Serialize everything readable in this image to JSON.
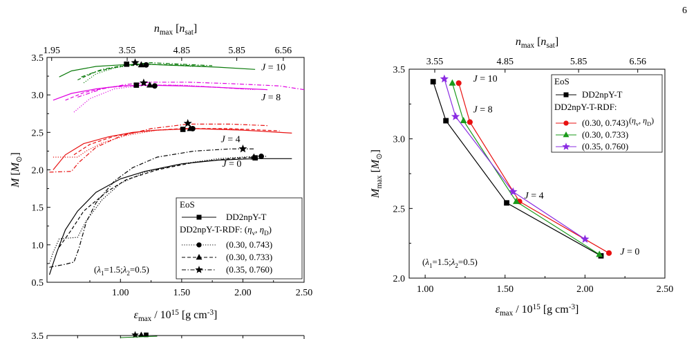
{
  "page": {
    "number": "6"
  },
  "chart_data": [
    {
      "type": "line",
      "xlabel": "ε_max / 10^15 [g cm^-3]",
      "ylabel": "M [M_⊙]",
      "top_xlabel": "n_max [n_sat]",
      "xlim": [
        0.4,
        2.5
      ],
      "ylim": [
        0.5,
        3.5
      ],
      "x_ticks": [
        "1.00",
        "1.50",
        "2.00",
        "2.50"
      ],
      "y_ticks": [
        "0.5",
        "1.0",
        "1.5",
        "2.0",
        "2.5",
        "3.0",
        "3.5"
      ],
      "top_ticks": [
        "1.95",
        "3.55",
        "4.85",
        "5.85",
        "6.56"
      ],
      "top_tick_pos": [
        0.438,
        1.055,
        1.5,
        1.95,
        2.33
      ],
      "annotation": "(λ1=1.5;λ2=0.5)",
      "legend": {
        "title": "EoS",
        "entries": [
          "DD2npY-T",
          "DD2npY-T-RDF: (η_v, η_D)",
          "(0.30, 0.743)",
          "(0.30, 0.733)",
          "(0.35, 0.760)"
        ],
        "position": "lower-right"
      },
      "groups": [
        {
          "label": "J = 10",
          "color": "#0a7a0a",
          "label_at": [
            2.15,
            3.33
          ]
        },
        {
          "label": "J = 8",
          "color": "#e000e0",
          "label_at": [
            2.15,
            2.93
          ]
        },
        {
          "label": "J = 4",
          "color": "#e81010",
          "label_at": [
            1.82,
            2.37
          ]
        },
        {
          "label": "J = 0",
          "color": "#000000",
          "label_at": [
            1.83,
            2.04
          ]
        }
      ],
      "series": [
        {
          "group": 0,
          "eos": "DD2npY-T",
          "style": "solid",
          "points": [
            [
              0.5,
              3.24
            ],
            [
              0.6,
              3.32
            ],
            [
              0.8,
              3.38
            ],
            [
              1.0,
              3.4
            ],
            [
              1.2,
              3.41
            ],
            [
              1.5,
              3.39
            ],
            [
              1.8,
              3.37
            ],
            [
              2.1,
              3.34
            ]
          ]
        },
        {
          "group": 0,
          "eos": "(0.30, 0.743)",
          "style": "dotted",
          "points": [
            [
              0.7,
              3.16
            ],
            [
              0.8,
              3.28
            ],
            [
              0.95,
              3.36
            ],
            [
              1.15,
              3.41
            ],
            [
              1.4,
              3.4
            ],
            [
              1.6,
              3.38
            ]
          ]
        },
        {
          "group": 0,
          "eos": "(0.30, 0.733)",
          "style": "dashed",
          "points": [
            [
              0.65,
              3.2
            ],
            [
              0.8,
              3.31
            ],
            [
              1.0,
              3.38
            ],
            [
              1.2,
              3.41
            ],
            [
              1.45,
              3.4
            ],
            [
              1.7,
              3.38
            ]
          ]
        },
        {
          "group": 0,
          "eos": "(0.35, 0.760)",
          "style": "dashdot",
          "points": [
            [
              0.68,
              3.24
            ],
            [
              0.85,
              3.34
            ],
            [
              1.05,
              3.4
            ],
            [
              1.25,
              3.43
            ],
            [
              1.5,
              3.41
            ],
            [
              1.75,
              3.39
            ]
          ]
        },
        {
          "group": 1,
          "eos": "DD2npY-T",
          "style": "solid",
          "points": [
            [
              0.45,
              2.93
            ],
            [
              0.6,
              3.02
            ],
            [
              0.8,
              3.08
            ],
            [
              1.0,
              3.12
            ],
            [
              1.2,
              3.13
            ],
            [
              1.5,
              3.12
            ],
            [
              1.8,
              3.1
            ],
            [
              2.2,
              3.07
            ]
          ]
        },
        {
          "group": 1,
          "eos": "(0.30, 0.743)",
          "style": "dotted",
          "points": [
            [
              0.62,
              2.77
            ],
            [
              0.75,
              2.95
            ],
            [
              0.95,
              3.08
            ],
            [
              1.2,
              3.13
            ],
            [
              1.5,
              3.13
            ],
            [
              1.8,
              3.1
            ],
            [
              2.1,
              3.07
            ]
          ]
        },
        {
          "group": 1,
          "eos": "(0.30, 0.733)",
          "style": "dashed",
          "points": [
            [
              0.55,
              2.93
            ],
            [
              0.7,
              3.03
            ],
            [
              0.9,
              3.1
            ],
            [
              1.15,
              3.13
            ],
            [
              1.4,
              3.13
            ],
            [
              1.7,
              3.11
            ],
            [
              2.0,
              3.08
            ]
          ]
        },
        {
          "group": 1,
          "eos": "(0.35, 0.760)",
          "style": "dashdot",
          "points": [
            [
              0.65,
              2.97
            ],
            [
              0.85,
              3.08
            ],
            [
              1.05,
              3.14
            ],
            [
              1.25,
              3.17
            ],
            [
              1.55,
              3.17
            ],
            [
              1.9,
              3.15
            ],
            [
              2.3,
              3.12
            ],
            [
              2.5,
              3.07
            ]
          ]
        },
        {
          "group": 2,
          "eos": "DD2npY-T",
          "style": "solid",
          "points": [
            [
              0.45,
              2.0
            ],
            [
              0.55,
              2.2
            ],
            [
              0.7,
              2.35
            ],
            [
              0.9,
              2.44
            ],
            [
              1.1,
              2.5
            ],
            [
              1.3,
              2.53
            ],
            [
              1.6,
              2.55
            ],
            [
              2.0,
              2.53
            ],
            [
              2.4,
              2.49
            ]
          ]
        },
        {
          "group": 2,
          "eos": "(0.30, 0.743)",
          "style": "dotted",
          "points": [
            [
              0.45,
              2.17
            ],
            [
              0.65,
              2.17
            ],
            [
              0.72,
              2.25
            ],
            [
              0.85,
              2.36
            ],
            [
              1.05,
              2.46
            ],
            [
              1.3,
              2.53
            ],
            [
              1.6,
              2.55
            ],
            [
              2.0,
              2.54
            ]
          ]
        },
        {
          "group": 2,
          "eos": "(0.30, 0.733)",
          "style": "dashed",
          "points": [
            [
              0.62,
              2.2
            ],
            [
              0.75,
              2.34
            ],
            [
              0.95,
              2.45
            ],
            [
              1.2,
              2.52
            ],
            [
              1.5,
              2.55
            ],
            [
              1.9,
              2.55
            ],
            [
              2.3,
              2.52
            ]
          ]
        },
        {
          "group": 2,
          "eos": "(0.35, 0.760)",
          "style": "dashdot",
          "points": [
            [
              0.42,
              1.97
            ],
            [
              0.6,
              1.98
            ],
            [
              0.66,
              2.1
            ],
            [
              0.8,
              2.3
            ],
            [
              1.0,
              2.45
            ],
            [
              1.25,
              2.55
            ],
            [
              1.55,
              2.61
            ],
            [
              1.9,
              2.61
            ],
            [
              2.2,
              2.59
            ]
          ]
        },
        {
          "group": 3,
          "eos": "DD2npY-T",
          "style": "solid",
          "points": [
            [
              0.42,
              0.6
            ],
            [
              0.48,
              0.9
            ],
            [
              0.55,
              1.2
            ],
            [
              0.65,
              1.45
            ],
            [
              0.8,
              1.7
            ],
            [
              1.0,
              1.88
            ],
            [
              1.2,
              1.98
            ],
            [
              1.5,
              2.08
            ],
            [
              1.8,
              2.13
            ],
            [
              2.1,
              2.15
            ],
            [
              2.4,
              2.15
            ]
          ]
        },
        {
          "group": 3,
          "eos": "(0.30, 0.743)",
          "style": "dotted",
          "points": [
            [
              0.42,
              0.75
            ],
            [
              0.45,
              0.9
            ],
            [
              0.5,
              1.08
            ],
            [
              0.65,
              1.1
            ],
            [
              0.72,
              1.32
            ],
            [
              0.85,
              1.6
            ],
            [
              1.0,
              1.82
            ],
            [
              1.2,
              1.97
            ],
            [
              1.5,
              2.08
            ],
            [
              1.8,
              2.15
            ],
            [
              2.1,
              2.18
            ],
            [
              2.2,
              2.18
            ]
          ]
        },
        {
          "group": 3,
          "eos": "(0.30, 0.733)",
          "style": "dashed",
          "points": [
            [
              0.5,
              0.97
            ],
            [
              0.6,
              1.2
            ],
            [
              0.7,
              1.45
            ],
            [
              0.78,
              1.56
            ],
            [
              0.9,
              1.72
            ],
            [
              1.05,
              1.87
            ],
            [
              1.3,
              2.0
            ],
            [
              1.6,
              2.1
            ],
            [
              1.9,
              2.15
            ],
            [
              2.1,
              2.17
            ]
          ]
        },
        {
          "group": 3,
          "eos": "(0.35, 0.760)",
          "style": "dashdot",
          "points": [
            [
              0.42,
              0.7
            ],
            [
              0.55,
              0.74
            ],
            [
              0.62,
              0.77
            ],
            [
              0.66,
              0.95
            ],
            [
              0.72,
              1.3
            ],
            [
              0.8,
              1.56
            ],
            [
              0.95,
              1.85
            ],
            [
              1.1,
              2.03
            ],
            [
              1.3,
              2.17
            ],
            [
              1.6,
              2.25
            ],
            [
              1.9,
              2.28
            ],
            [
              2.1,
              2.28
            ]
          ]
        }
      ],
      "markers": [
        {
          "group": 0,
          "eos": "DD2npY-T",
          "shape": "square",
          "x": 1.05,
          "y": 3.41
        },
        {
          "group": 0,
          "eos": "(0.30, 0.743)",
          "shape": "circle",
          "x": 1.21,
          "y": 3.4
        },
        {
          "group": 0,
          "eos": "(0.30, 0.733)",
          "shape": "triangle",
          "x": 1.17,
          "y": 3.4
        },
        {
          "group": 0,
          "eos": "(0.35, 0.760)",
          "shape": "star",
          "x": 1.12,
          "y": 3.43
        },
        {
          "group": 1,
          "eos": "DD2npY-T",
          "shape": "square",
          "x": 1.13,
          "y": 3.13
        },
        {
          "group": 1,
          "eos": "(0.30, 0.743)",
          "shape": "circle",
          "x": 1.28,
          "y": 3.12
        },
        {
          "group": 1,
          "eos": "(0.30, 0.733)",
          "shape": "triangle",
          "x": 1.24,
          "y": 3.13
        },
        {
          "group": 1,
          "eos": "(0.35, 0.760)",
          "shape": "star",
          "x": 1.19,
          "y": 3.16
        },
        {
          "group": 2,
          "eos": "DD2npY-T",
          "shape": "square",
          "x": 1.51,
          "y": 2.54
        },
        {
          "group": 2,
          "eos": "(0.30, 0.743)",
          "shape": "circle",
          "x": 1.59,
          "y": 2.55
        },
        {
          "group": 2,
          "eos": "(0.30, 0.733)",
          "shape": "triangle",
          "x": 1.57,
          "y": 2.55
        },
        {
          "group": 2,
          "eos": "(0.35, 0.760)",
          "shape": "star",
          "x": 1.55,
          "y": 2.62
        },
        {
          "group": 3,
          "eos": "DD2npY-T",
          "shape": "square",
          "x": 2.1,
          "y": 2.16
        },
        {
          "group": 3,
          "eos": "(0.30, 0.743)",
          "shape": "circle",
          "x": 2.15,
          "y": 2.18
        },
        {
          "group": 3,
          "eos": "(0.30, 0.733)",
          "shape": "triangle",
          "x": 2.09,
          "y": 2.17
        },
        {
          "group": 3,
          "eos": "(0.35, 0.760)",
          "shape": "star",
          "x": 2.0,
          "y": 2.28
        }
      ]
    },
    {
      "type": "line",
      "xlabel": "ε_max / 10^15 [g cm^-3]",
      "ylabel": "M_max [M_⊙]",
      "top_xlabel": "n_max [n_sat]",
      "xlim": [
        0.9,
        2.5
      ],
      "ylim": [
        2.0,
        3.5
      ],
      "x_ticks": [
        "1.00",
        "1.50",
        "2.00",
        "2.50"
      ],
      "y_ticks": [
        "2.0",
        "2.5",
        "3.0",
        "3.5"
      ],
      "top_ticks": [
        "3.55",
        "4.85",
        "5.85",
        "6.56"
      ],
      "top_tick_pos": [
        1.06,
        1.5,
        1.96,
        2.33
      ],
      "annotation": "(λ1=1.5;λ2=0.5)",
      "legend": {
        "title": "EoS",
        "entries": [
          "DD2npY-T",
          "DD2npY-T-RDF:",
          "(0.30, 0.743)",
          "(0.30, 0.733)",
          "(0.35, 0.760)"
        ],
        "rdf_params": "(η_v, η_D)",
        "position": "upper-right"
      },
      "labels": [
        {
          "text": "J = 10",
          "at": [
            1.3,
            3.41
          ]
        },
        {
          "text": "J = 8",
          "at": [
            1.3,
            3.19
          ]
        },
        {
          "text": "J = 4",
          "at": [
            1.62,
            2.57
          ]
        },
        {
          "text": "J = 0",
          "at": [
            2.22,
            2.17
          ]
        }
      ],
      "series": [
        {
          "name": "DD2npY-T",
          "color": "#000000",
          "shape": "square",
          "x": [
            1.05,
            1.13,
            1.51,
            2.1
          ],
          "y": [
            3.41,
            3.13,
            2.54,
            2.16
          ]
        },
        {
          "name": "(0.30, 0.743)",
          "color": "#e81010",
          "shape": "circle",
          "x": [
            1.21,
            1.28,
            1.59,
            2.15
          ],
          "y": [
            3.4,
            3.12,
            2.55,
            2.18
          ]
        },
        {
          "name": "(0.30, 0.733)",
          "color": "#1a9a1a",
          "shape": "triangle",
          "x": [
            1.17,
            1.24,
            1.57,
            2.09
          ],
          "y": [
            3.4,
            3.13,
            2.55,
            2.17
          ]
        },
        {
          "name": "(0.35, 0.760)",
          "color": "#8a2be2",
          "shape": "star",
          "x": [
            1.12,
            1.19,
            1.55,
            2.0
          ],
          "y": [
            3.43,
            3.16,
            2.62,
            2.28
          ]
        }
      ]
    },
    {
      "type": "line",
      "partial": true,
      "y_ticks": [
        "3.5"
      ],
      "groups": [
        {
          "color": "#0a7a0a"
        }
      ],
      "markers": [
        {
          "shape": "star",
          "x": 1.12,
          "y": 3.5
        },
        {
          "shape": "triangle",
          "x": 1.17,
          "y": 3.5
        },
        {
          "shape": "square",
          "x": 1.21,
          "y": 3.5
        }
      ]
    }
  ]
}
